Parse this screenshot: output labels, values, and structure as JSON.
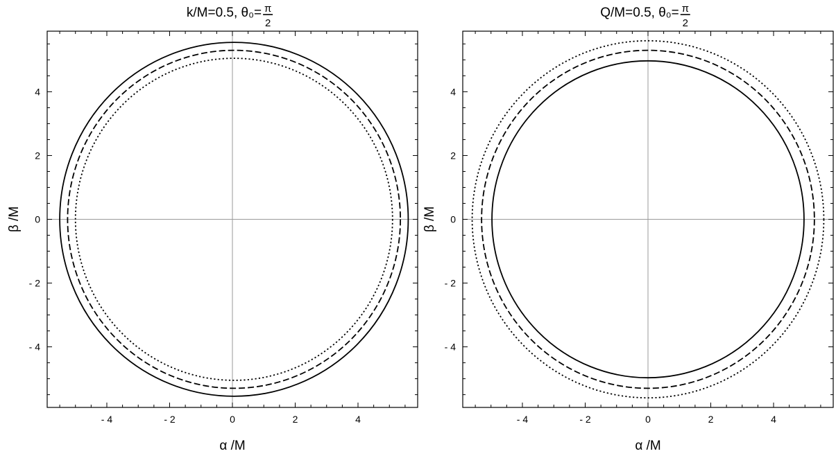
{
  "chart_data": [
    {
      "type": "line",
      "title": {
        "text": "k/M=0.5, θ₀=",
        "frac_num": "π",
        "frac_den": "2"
      },
      "xlabel": "α /M",
      "ylabel": "β /M",
      "xlim": [
        -5.9,
        5.9
      ],
      "ylim": [
        -5.9,
        5.9
      ],
      "xticks": [
        -4,
        -2,
        0,
        2,
        4
      ],
      "yticks": [
        -4,
        -2,
        0,
        2,
        4
      ],
      "xtick_labels": [
        "- 4",
        "- 2",
        "0",
        "2",
        "4"
      ],
      "ytick_labels": [
        "- 4",
        "- 2",
        "0",
        "2",
        "4"
      ],
      "grid": false,
      "series": [
        {
          "style": "solid",
          "shape": "circle",
          "center": [
            0.05,
            0
          ],
          "radius": 5.55
        },
        {
          "style": "dashed",
          "shape": "circle",
          "center": [
            0.05,
            0
          ],
          "radius": 5.3
        },
        {
          "style": "dotted",
          "shape": "circle",
          "center": [
            0.05,
            0
          ],
          "radius": 5.05
        }
      ]
    },
    {
      "type": "line",
      "title": {
        "text": "Q/M=0.5, θ₀=",
        "frac_num": "π",
        "frac_den": "2"
      },
      "xlabel": "α /M",
      "ylabel": "β /M",
      "xlim": [
        -5.9,
        5.9
      ],
      "ylim": [
        -5.9,
        5.9
      ],
      "xticks": [
        -4,
        -2,
        0,
        2,
        4
      ],
      "yticks": [
        -4,
        -2,
        0,
        2,
        4
      ],
      "xtick_labels": [
        "- 4",
        "- 2",
        "0",
        "2",
        "4"
      ],
      "ytick_labels": [
        "- 4",
        "- 2",
        "0",
        "2",
        "4"
      ],
      "grid": false,
      "series": [
        {
          "style": "solid",
          "shape": "circle",
          "center": [
            0,
            0
          ],
          "radius": 4.97
        },
        {
          "style": "dashed",
          "shape": "circle",
          "center": [
            0,
            0
          ],
          "radius": 5.3
        },
        {
          "style": "dotted",
          "shape": "circle",
          "center": [
            0,
            0
          ],
          "radius": 5.6
        }
      ]
    }
  ]
}
